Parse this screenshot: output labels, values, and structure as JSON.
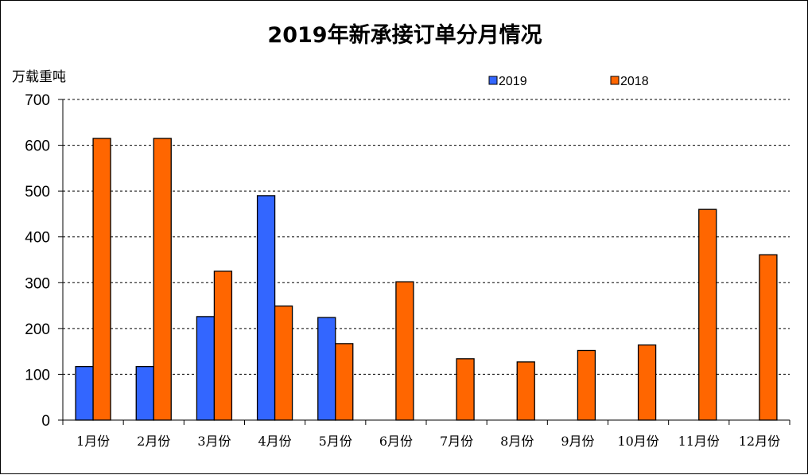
{
  "chart_data": {
    "type": "bar",
    "title": "2019年新承接订单分月情况",
    "ylabel": "万载重吨",
    "xlabel": "",
    "ylim": [
      0,
      700
    ],
    "yticks": [
      0,
      100,
      200,
      300,
      400,
      500,
      600,
      700
    ],
    "grid": true,
    "legend_position": "top-right",
    "categories": [
      "1月份",
      "2月份",
      "3月份",
      "4月份",
      "5月份",
      "6月份",
      "7月份",
      "8月份",
      "9月份",
      "10月份",
      "11月份",
      "12月份"
    ],
    "series": [
      {
        "name": "2019",
        "color": "#3366ff",
        "values": [
          117,
          117,
          226,
          490,
          224,
          null,
          null,
          null,
          null,
          null,
          null,
          null
        ]
      },
      {
        "name": "2018",
        "color": "#ff6600",
        "values": [
          615,
          615,
          325,
          249,
          167,
          302,
          134,
          127,
          152,
          164,
          460,
          361
        ]
      }
    ]
  }
}
